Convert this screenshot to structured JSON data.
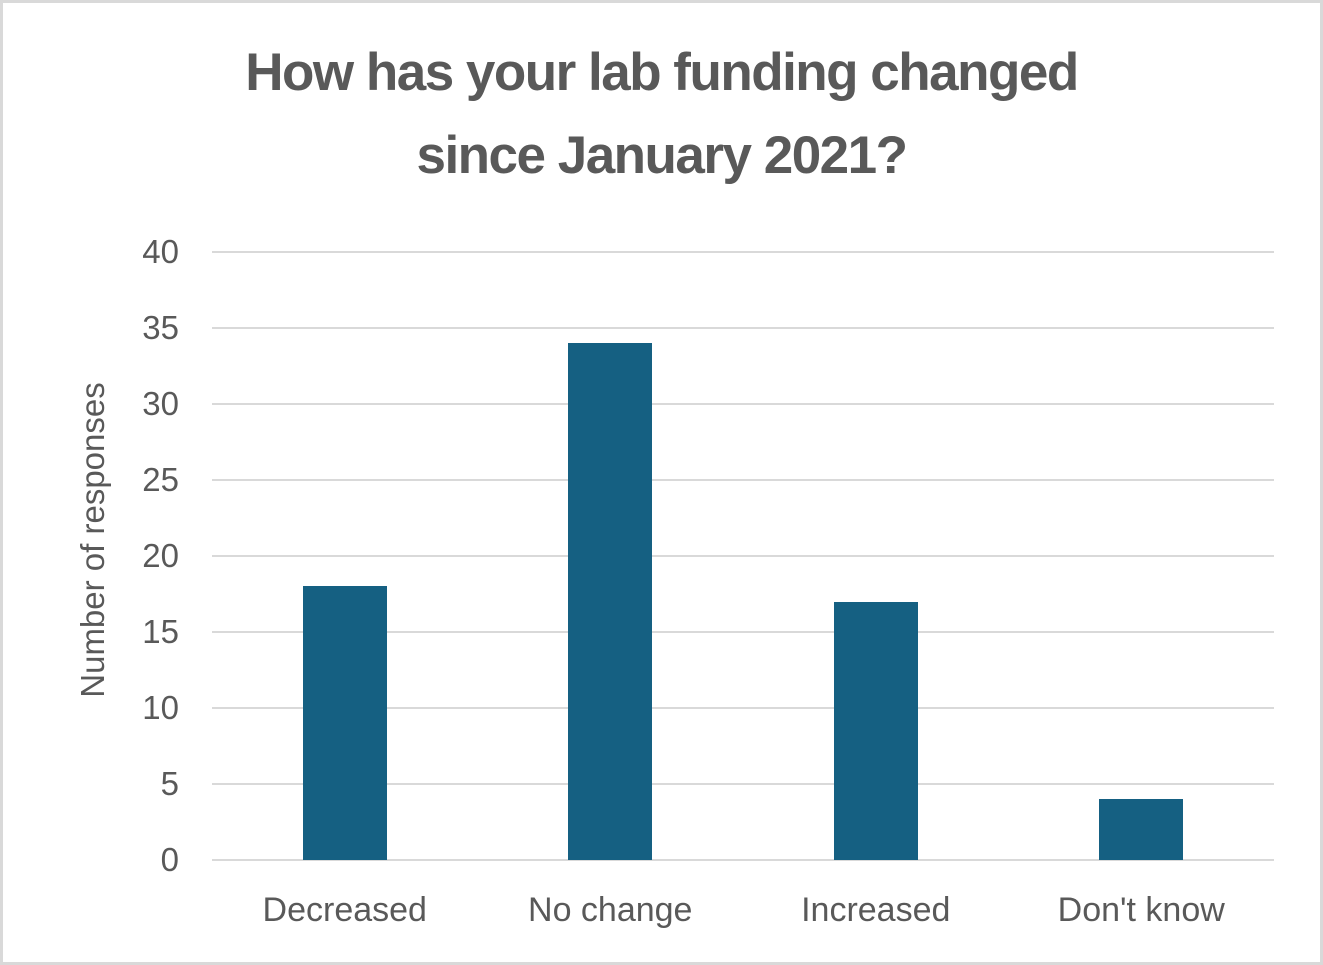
{
  "page": {
    "background_color": "#ffffff",
    "border_color": "#d9d9d9"
  },
  "chart_data": {
    "type": "bar",
    "title": "How has your lab funding changed since January 2021?",
    "title_lines": [
      "How has your lab funding changed",
      "since January 2021?"
    ],
    "xlabel": "",
    "ylabel": "Number of responses",
    "categories": [
      "Decreased",
      "No change",
      "Increased",
      "Don't know"
    ],
    "values": [
      18,
      34,
      17,
      4
    ],
    "ylim": [
      0,
      40
    ],
    "yticks": [
      0,
      5,
      10,
      15,
      20,
      25,
      30,
      35,
      40
    ],
    "grid": "horizontal",
    "legend": "none",
    "bar_color": "#156082",
    "text_color": "#595959",
    "gridline_color": "#d9d9d9"
  }
}
